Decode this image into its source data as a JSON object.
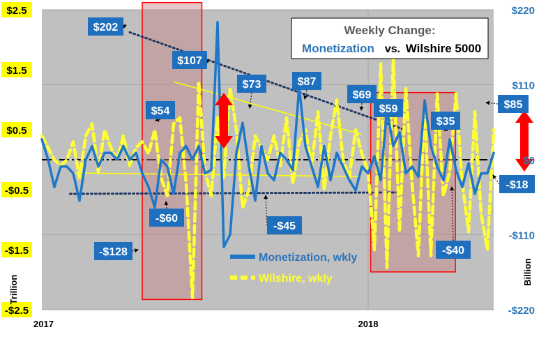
{
  "chart_data": {
    "type": "line",
    "title": {
      "line1": "Weekly Change:",
      "part_a": "Monetization",
      "part_b": "vs.",
      "part_c": "Wilshire 5000"
    },
    "left_axis": {
      "label": "Trillion",
      "ylim": [
        -2.5,
        2.5
      ],
      "ticks": [
        {
          "value": 2.5,
          "label": "$2.5"
        },
        {
          "value": 1.5,
          "label": "$1.5"
        },
        {
          "value": 0.5,
          "label": "$0.5"
        },
        {
          "value": -0.5,
          "label": "-$0.5"
        },
        {
          "value": -1.5,
          "label": "-$1.5"
        },
        {
          "value": -2.5,
          "label": "-$2.5"
        }
      ]
    },
    "right_axis": {
      "label": "Billion",
      "ylim": [
        -220,
        220
      ],
      "ticks": [
        {
          "value": 220,
          "label": "$220"
        },
        {
          "value": 110,
          "label": "$110"
        },
        {
          "value": 0,
          "label": "$0"
        },
        {
          "value": -110,
          "label": "-$110"
        },
        {
          "value": -220,
          "label": "-$220"
        }
      ]
    },
    "x_axis": {
      "xlim": [
        0,
        72
      ],
      "ticks": [
        {
          "value": 0,
          "label": "2017"
        },
        {
          "value": 52,
          "label": "2018"
        }
      ]
    },
    "series": [
      {
        "name": "Monetization, wkly",
        "axis": "right",
        "color": "#1f77c8",
        "values": [
          30,
          0,
          -40,
          -10,
          -10,
          -20,
          -60,
          0,
          20,
          -10,
          10,
          10,
          0,
          20,
          0,
          10,
          -20,
          -40,
          -70,
          0,
          -10,
          -50,
          10,
          20,
          0,
          20,
          -20,
          -15,
          202,
          -128,
          -110,
          10,
          54,
          -10,
          -60,
          20,
          -20,
          -30,
          10,
          0,
          -15,
          107,
          20,
          -10,
          -40,
          20,
          -30,
          10,
          -10,
          -30,
          -45,
          -10,
          -20,
          5,
          -30,
          73,
          20,
          40,
          -20,
          -10,
          -25,
          87,
          20,
          -10,
          -30,
          30,
          -15,
          -40,
          -5,
          -50,
          -20,
          -20,
          10
        ]
      },
      {
        "name": "Wilshire, wkly",
        "axis": "left",
        "color": "#ffff33",
        "values": [
          0.4,
          0.2,
          0,
          -0.1,
          0,
          0.3,
          -0.3,
          0.4,
          0.6,
          -0.2,
          0.5,
          0.2,
          0,
          0.4,
          -0.1,
          0.2,
          0.3,
          0.1,
          0.5,
          -0.3,
          -0.6,
          0.6,
          0.7,
          -0.4,
          -2.3,
          1.3,
          -0.2,
          -0.6,
          0.7,
          -0.3,
          1.2,
          0.5,
          -0.8,
          -0.5,
          0.4,
          0.2,
          0,
          0.4,
          -0.1,
          0.7,
          -0.4,
          0.3,
          0.5,
          -0.1,
          0.8,
          -0.5,
          0.4,
          1,
          0,
          -0.3,
          0.5,
          0.1,
          -0.2,
          -1.5,
          1.6,
          -1.8,
          1.7,
          -1.2,
          1.2,
          -0.4,
          -1.6,
          0.9,
          -1.6,
          1.1,
          -0.6,
          -0.2,
          1.1,
          -0.4,
          -1.2,
          0.8,
          -0.9,
          -1.5,
          0.5
        ]
      }
    ],
    "labeled_points": [
      {
        "label": "$202"
      },
      {
        "label": "-$128"
      },
      {
        "label": "$54"
      },
      {
        "label": "-$60"
      },
      {
        "label": "$107"
      },
      {
        "label": "$73"
      },
      {
        "label": "-$45"
      },
      {
        "label": "$87"
      },
      {
        "label": "$69"
      },
      {
        "label": "$59"
      },
      {
        "label": "$35"
      },
      {
        "label": "-$40"
      },
      {
        "label": "$85"
      },
      {
        "label": "-$18"
      }
    ],
    "legend": {
      "placement": "bottom-center",
      "items": [
        {
          "label": "Monetization, wkly",
          "color": "#1f77c8",
          "style": "solid"
        },
        {
          "label": "Wilshire, wkly",
          "color": "#ffff33",
          "style": "dashed"
        }
      ]
    },
    "grid": true,
    "colors": {
      "plot_background": "#c0c0c0",
      "left_axis_tick_background": "#ffff00",
      "right_axis_tick_color": "#2e75b6",
      "label_box": "#1f6fbf",
      "highlight_box": "#ff0000",
      "arrow": "#ff0000",
      "trend_dotted": "#1f3864",
      "trend_yellow": "#ffff00"
    }
  }
}
